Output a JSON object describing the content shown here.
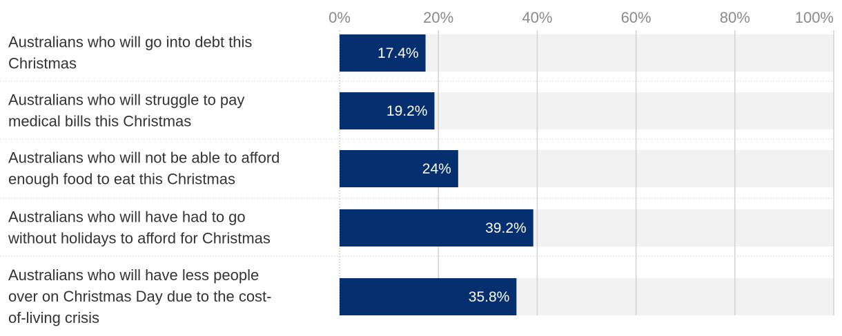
{
  "chart_data": {
    "type": "bar",
    "orientation": "horizontal",
    "categories": [
      [
        "Australians who will go into debt this",
        "Christmas"
      ],
      [
        "Australians who will struggle to pay",
        "medical bills this Christmas"
      ],
      [
        "Australians who will not be able to afford",
        "enough food to eat this Christmas"
      ],
      [
        "Australians who will have had to go",
        "without holidays to afford for Christmas"
      ],
      [
        "Australians who will have less people",
        "over on Christmas Day due to the cost-",
        "of-living crisis"
      ]
    ],
    "values": [
      17.4,
      19.2,
      24,
      39.2,
      35.8
    ],
    "value_labels": [
      "17.4%",
      "19.2%",
      "24%",
      "39.2%",
      "35.8%"
    ],
    "xlim": [
      0,
      100
    ],
    "ticks": [
      0,
      20,
      40,
      60,
      80,
      100
    ],
    "tick_labels": [
      "0%",
      "20%",
      "40%",
      "60%",
      "80%",
      "100%"
    ],
    "axis_position": "top",
    "grid": true,
    "colors": {
      "bar": "#052f6f",
      "track": "#f2f2f2",
      "grid": "#d2d2d2",
      "separator": "#d8d8d8"
    }
  }
}
